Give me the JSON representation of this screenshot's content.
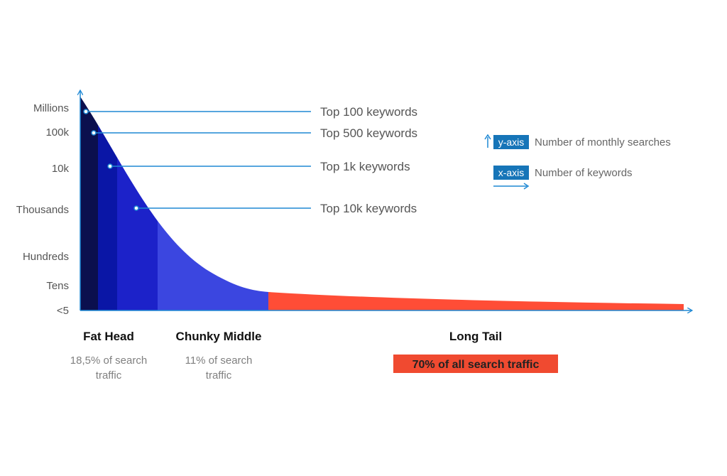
{
  "chart_data": {
    "type": "area",
    "y_tick_labels": [
      "Millions",
      "100k",
      "10k",
      "Thousands",
      "Hundreds",
      "Tens",
      "<5"
    ],
    "annotations": [
      {
        "label": "Top 100 keywords"
      },
      {
        "label": "Top 500 keywords"
      },
      {
        "label": "Top 1k keywords"
      },
      {
        "label": "Top 10k keywords"
      }
    ],
    "segments": [
      {
        "name": "Fat Head",
        "note_lines": [
          "18,5% of search",
          "traffic"
        ]
      },
      {
        "name": "Chunky Middle",
        "note_lines": [
          "11% of search",
          "traffic"
        ]
      },
      {
        "name": "Long Tail",
        "highlight": "70% of all search traffic"
      }
    ],
    "legend": {
      "position": "top-right",
      "items": [
        {
          "tag": "y-axis",
          "text": "Number of monthly searches"
        },
        {
          "tag": "x-axis",
          "text": "Number of keywords"
        }
      ]
    },
    "colors": {
      "axis": "#1e88d4",
      "head_bands": [
        "#0b0f4e",
        "#0a16a6",
        "#1c22c9",
        "#3b46e0"
      ],
      "tail": "#ff4d36",
      "highlight_bg": "#f04a30",
      "legend_tag_bg": "#1675b8"
    }
  }
}
